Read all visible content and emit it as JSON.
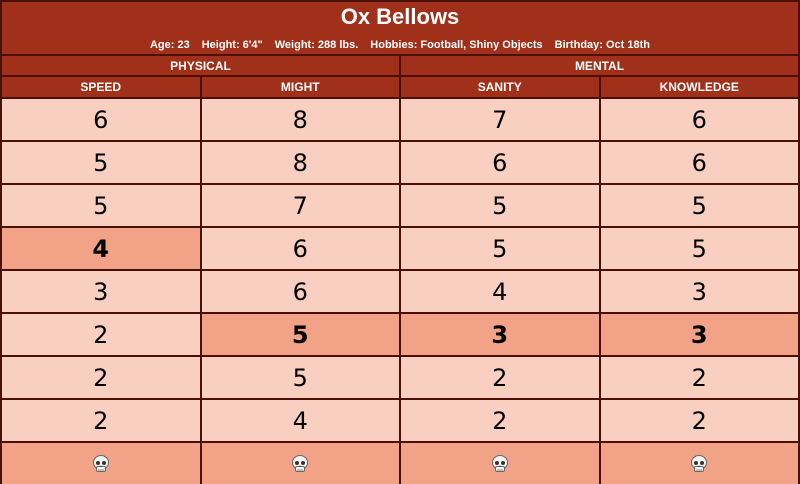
{
  "character": {
    "name": "Ox Bellows",
    "age": "Age: 23",
    "height": "Height: 6'4\"",
    "weight": "Weight: 288 lbs.",
    "hobbies": "Hobbies: Football, Shiny Objects",
    "birthday": "Birthday: Oct 18th"
  },
  "groups": [
    "PHYSICAL",
    "MENTAL"
  ],
  "columns": [
    "SPEED",
    "MIGHT",
    "SANITY",
    "KNOWLEDGE"
  ],
  "rows": [
    [
      "6",
      "8",
      "7",
      "6"
    ],
    [
      "5",
      "8",
      "6",
      "6"
    ],
    [
      "5",
      "7",
      "5",
      "5"
    ],
    [
      "4",
      "6",
      "5",
      "5"
    ],
    [
      "3",
      "6",
      "4",
      "3"
    ],
    [
      "2",
      "5",
      "3",
      "3"
    ],
    [
      "2",
      "5",
      "2",
      "2"
    ],
    [
      "2",
      "4",
      "2",
      "2"
    ]
  ],
  "starting_row_index": [
    3,
    5,
    5,
    5
  ],
  "death_row": [
    "skull-icon",
    "skull-icon",
    "skull-icon",
    "skull-icon"
  ],
  "colors": {
    "header": "#a1301a",
    "border": "#4a0f06",
    "cell": "#f9cfc1",
    "highlight": "#f2a287"
  }
}
